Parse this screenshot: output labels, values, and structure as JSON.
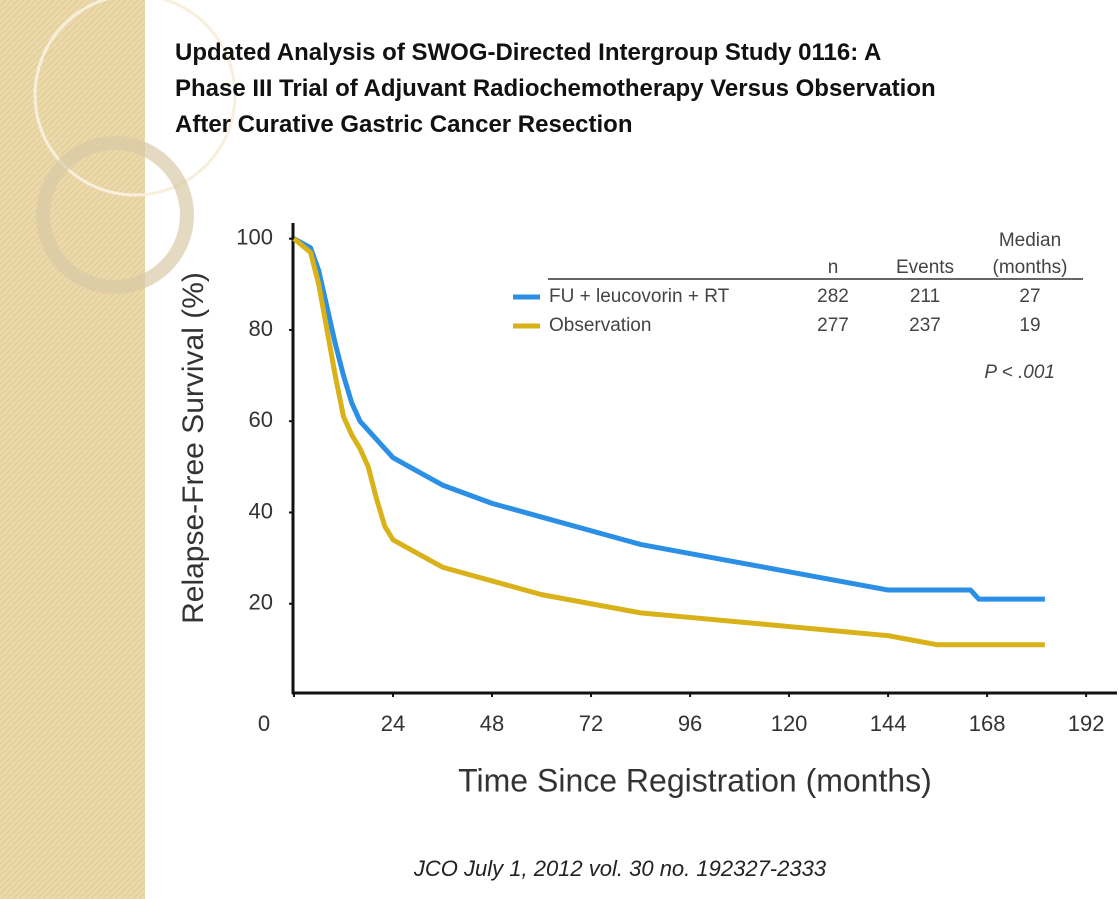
{
  "chart_data": {
    "type": "line",
    "title": [
      "Updated Analysis of SWOG-Directed Intergroup Study 0116: A",
      "Phase III Trial of Adjuvant Radiochemotherapy Versus Observation",
      "After Curative Gastric Cancer Resection"
    ],
    "x_label": "Time Since Registration (months)",
    "y_label": "Relapse-Free Survival (%)",
    "xlim": [
      0,
      199
    ],
    "ylim": [
      0,
      103
    ],
    "xticks": [
      0,
      24,
      48,
      72,
      96,
      120,
      144,
      168,
      192
    ],
    "yticks": [
      20,
      40,
      60,
      80,
      100
    ],
    "grid": false,
    "legend_headers": [
      "n",
      "Events",
      "Median",
      "(months)"
    ],
    "series": [
      {
        "name": "FU + leucovorin + RT",
        "color": "#2b8fe6",
        "n": "282",
        "events": "211",
        "median": "27",
        "x": [
          0,
          4,
          6,
          8,
          10,
          12,
          14,
          16,
          20,
          24,
          30,
          36,
          48,
          60,
          72,
          84,
          96,
          108,
          120,
          132,
          144,
          156,
          164,
          166,
          182
        ],
        "values": [
          100,
          98,
          93,
          85,
          77,
          70,
          64,
          60,
          56,
          52,
          49,
          46,
          42,
          39,
          36,
          33,
          31,
          29,
          27,
          25,
          23,
          23,
          23,
          21,
          21
        ]
      },
      {
        "name": "Observation",
        "color": "#d9b118",
        "n": "277",
        "events": "237",
        "median": "19",
        "x": [
          0,
          4,
          6,
          8,
          10,
          12,
          14,
          16,
          18,
          20,
          22,
          24,
          30,
          36,
          48,
          60,
          72,
          84,
          96,
          108,
          120,
          132,
          144,
          150,
          156,
          170,
          182
        ],
        "values": [
          100,
          97,
          90,
          80,
          70,
          61,
          57,
          54,
          50,
          43,
          37,
          34,
          31,
          28,
          25,
          22,
          20,
          18,
          17,
          16,
          15,
          14,
          13,
          12,
          11,
          11,
          11
        ]
      }
    ],
    "annotation": "P < .001",
    "source": "JCO July 1, 2012 vol. 30 no. 192327-2333"
  }
}
